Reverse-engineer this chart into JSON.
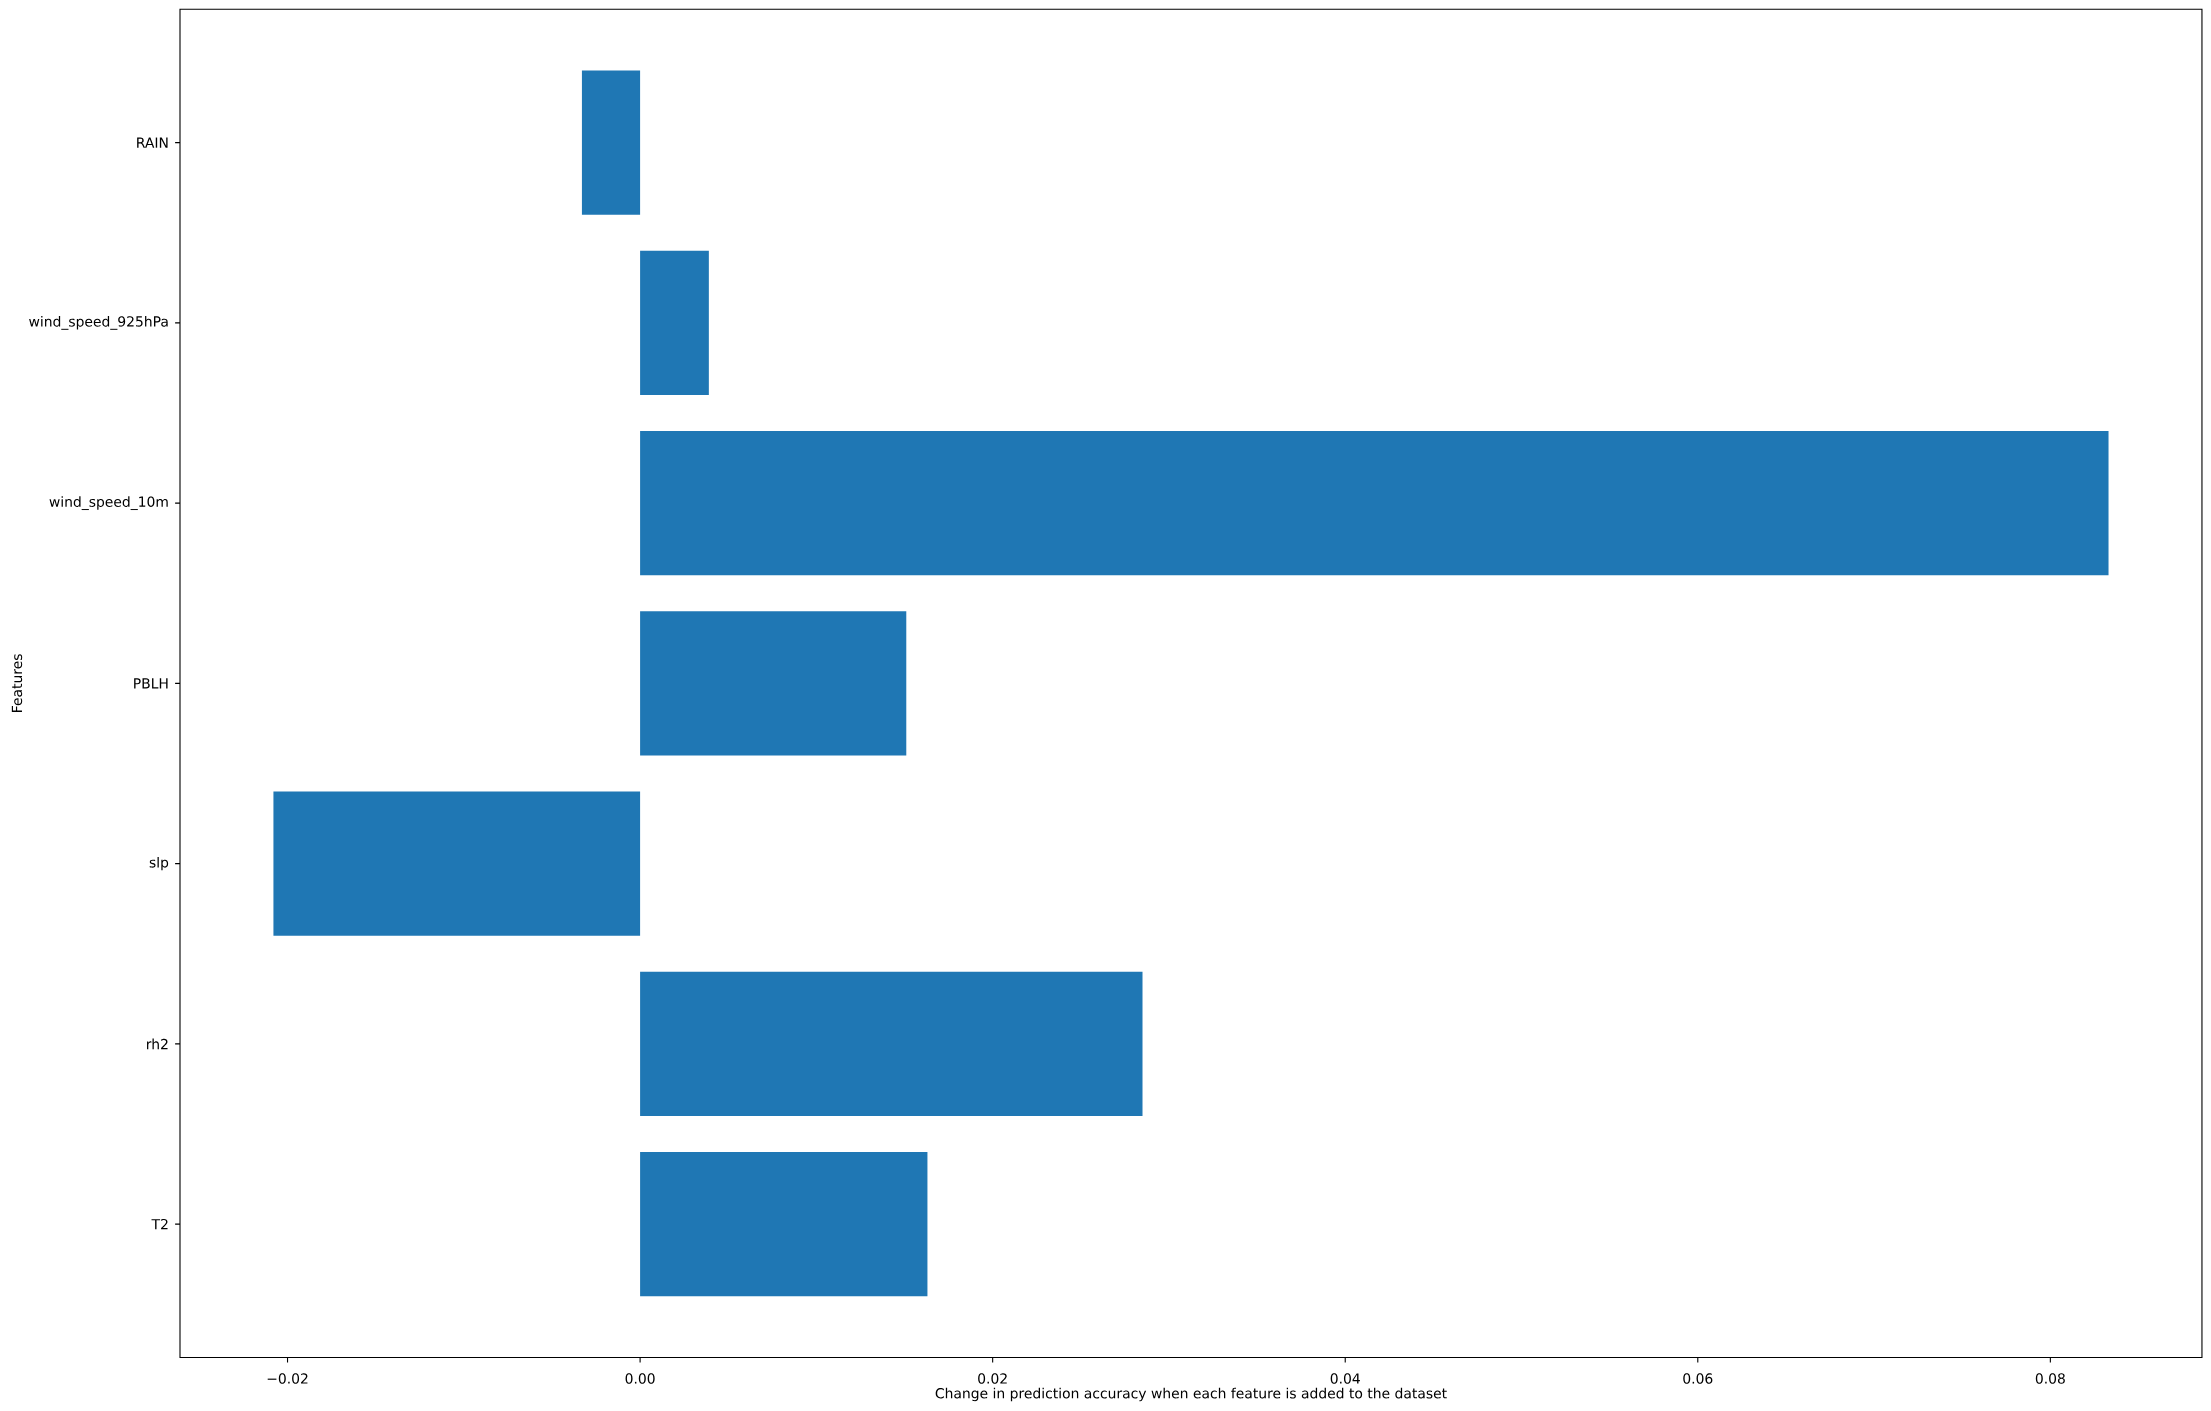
{
  "chart_data": {
    "type": "bar",
    "orientation": "horizontal",
    "xlabel": "Change in prediction accuracy when each feature is added to the dataset",
    "ylabel": "Features",
    "categories": [
      "RAIN",
      "wind_speed_925hPa",
      "wind_speed_10m",
      "PBLH",
      "slp",
      "rh2",
      "T2"
    ],
    "values": [
      -0.0033,
      0.0039,
      0.0833,
      0.0151,
      -0.0208,
      0.0285,
      0.0163
    ],
    "color": "#1f77b4",
    "xlim": [
      -0.0261,
      0.0886
    ],
    "xticks": [
      {
        "value": -0.02,
        "label": "−0.02"
      },
      {
        "value": 0,
        "label": "0.00"
      },
      0.02,
      0.04,
      0.06,
      0.08
    ]
  }
}
